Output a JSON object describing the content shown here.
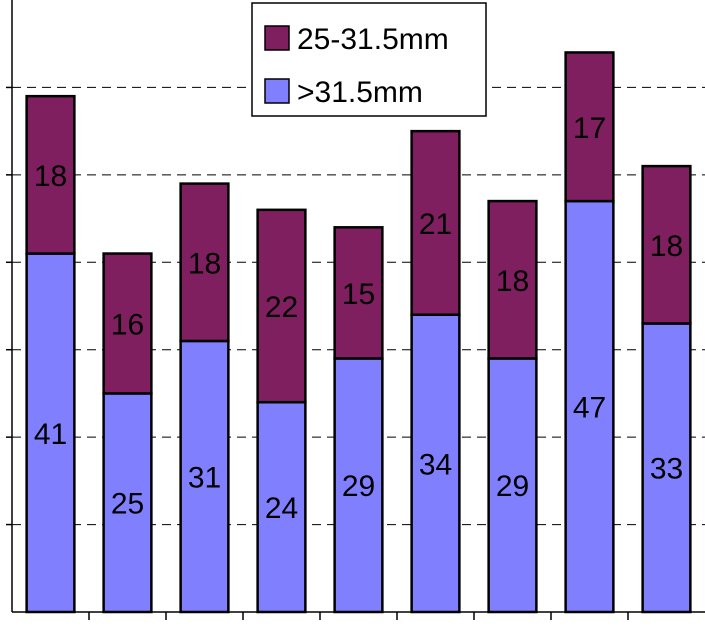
{
  "chart_data": {
    "type": "bar",
    "stacked": true,
    "categories": [
      "",
      "",
      "",
      "",
      "",
      "",
      "",
      "",
      ""
    ],
    "series": [
      {
        "name": ">31.5mm",
        "color": "#8080ff",
        "values": [
          41,
          25,
          31,
          24,
          29,
          34,
          29,
          47,
          33
        ]
      },
      {
        "name": "25-31.5mm",
        "color": "#7f1f5f",
        "values": [
          18,
          16,
          18,
          22,
          15,
          21,
          18,
          17,
          18
        ]
      }
    ],
    "legend": [
      "25-31.5mm",
      ">31.5mm"
    ],
    "legend_position": "top-center",
    "ylim": [
      0,
      70
    ],
    "y_tick_step": 10,
    "grid": true,
    "title": "",
    "xlabel": "",
    "ylabel": ""
  }
}
